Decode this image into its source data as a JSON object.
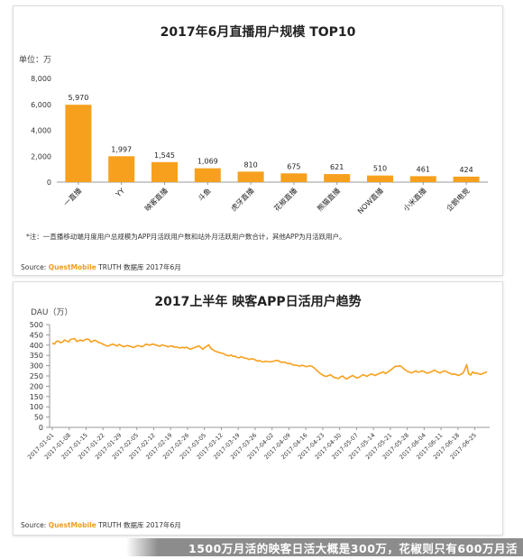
{
  "chart1": {
    "title": "2017年6月直播用户规模 TOP10",
    "unit": "单位：万",
    "note": "*注：一直播移动端月度用户总规模为APP月活跃用户数和站外月活跃用户数合计，其他APP为月活跃用户。",
    "source_label": "Source:",
    "source_brand": "QuestMobile",
    "source_rest": "TRUTH 数据库 2017年6月"
  },
  "chart2": {
    "title": "2017上半年 映客APP日活用户趋势",
    "unit": "DAU（万）",
    "source_label": "Source:",
    "source_brand": "QuestMobile",
    "source_rest": "TRUTH 数据库 2017年6月"
  },
  "caption": "1500万月活的映客日活大概是300万，花椒则只有600万月活",
  "colors": {
    "accent": "#f7a01d",
    "axis": "#999999",
    "grid": "#e6e6e6"
  },
  "chart_data": [
    {
      "type": "bar",
      "title": "2017年6月直播用户规模 TOP10",
      "ylabel": "单位：万",
      "categories": [
        "一直播",
        "YY",
        "映客直播",
        "斗鱼",
        "虎牙直播",
        "花椒直播",
        "熊猫直播",
        "NOW直播",
        "小米直播",
        "企鹅电竞"
      ],
      "values": [
        5970,
        1997,
        1545,
        1069,
        810,
        675,
        621,
        510,
        461,
        424
      ],
      "value_labels": [
        "5,970",
        "1,997",
        "1,545",
        "1,069",
        "810",
        "675",
        "621",
        "510",
        "461",
        "424"
      ],
      "ylim": [
        0,
        8000
      ],
      "yticks": [
        0,
        2000,
        4000,
        6000,
        8000
      ],
      "ytick_labels": [
        "0",
        "2,000",
        "4,000",
        "6,000",
        "8,000"
      ],
      "grid": false,
      "legend": "none"
    },
    {
      "type": "line",
      "title": "2017上半年 映客APP日活用户趋势",
      "ylabel": "DAU（万）",
      "ylim": [
        0,
        500
      ],
      "yticks": [
        0,
        50,
        100,
        150,
        200,
        250,
        300,
        350,
        400,
        450,
        500
      ],
      "x_start": "2017-01-01",
      "x_end": "2017-06-30",
      "xtick_labels": [
        "2017-01-01",
        "2017-01-08",
        "2017-01-15",
        "2017-01-22",
        "2017-01-29",
        "2017-02-05",
        "2017-02-12",
        "2017-02-19",
        "2017-02-26",
        "2017-03-05",
        "2017-03-12",
        "2017-03-19",
        "2017-03-26",
        "2017-04-02",
        "2017-04-09",
        "2017-04-16",
        "2017-04-23",
        "2017-04-30",
        "2017-05-07",
        "2017-05-14",
        "2017-05-21",
        "2017-05-28",
        "2017-06-04",
        "2017-06-11",
        "2017-06-18",
        "2017-06-25"
      ],
      "values": [
        410,
        405,
        418,
        420,
        412,
        415,
        425,
        420,
        416,
        428,
        430,
        432,
        418,
        422,
        425,
        420,
        426,
        430,
        428,
        415,
        420,
        424,
        418,
        412,
        410,
        404,
        400,
        395,
        398,
        402,
        405,
        400,
        396,
        404,
        398,
        392,
        395,
        398,
        395,
        392,
        388,
        394,
        398,
        396,
        392,
        396,
        405,
        402,
        400,
        404,
        405,
        400,
        398,
        394,
        402,
        398,
        396,
        392,
        395,
        396,
        390,
        392,
        388,
        386,
        390,
        386,
        390,
        385,
        380,
        384,
        388,
        392,
        396,
        390,
        380,
        388,
        394,
        402,
        385,
        378,
        372,
        368,
        365,
        362,
        360,
        355,
        350,
        348,
        352,
        345,
        346,
        340,
        338,
        344,
        340,
        336,
        335,
        330,
        334,
        332,
        328,
        322,
        325,
        320,
        318,
        322,
        320,
        318,
        320,
        322,
        325,
        326,
        320,
        316,
        318,
        315,
        310,
        312,
        306,
        302,
        303,
        300,
        298,
        302,
        299,
        295,
        298,
        300,
        296,
        288,
        280,
        270,
        262,
        255,
        250,
        248,
        252,
        256,
        248,
        242,
        240,
        238,
        246,
        250,
        240,
        236,
        242,
        248,
        252,
        246,
        240,
        244,
        250,
        256,
        252,
        248,
        255,
        260,
        256,
        252,
        258,
        262,
        266,
        270,
        262,
        268,
        275,
        282,
        290,
        298,
        296,
        300,
        295,
        285,
        278,
        272,
        268,
        265,
        270,
        275,
        268,
        270,
        275,
        272,
        266,
        264,
        268,
        272,
        278,
        274,
        268,
        265,
        270,
        275,
        272,
        266,
        262,
        258,
        260,
        256,
        252,
        258,
        262,
        278,
        305,
        260,
        255,
        270,
        262,
        265,
        260,
        258,
        262,
        266,
        270
      ],
      "grid": false,
      "legend": "none"
    }
  ]
}
